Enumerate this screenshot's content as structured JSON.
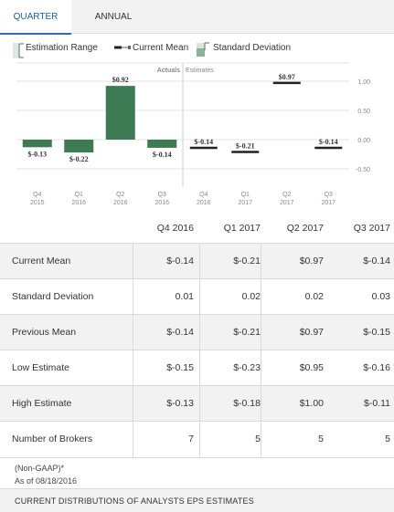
{
  "tabs": [
    {
      "label": "QUARTER",
      "active": true
    },
    {
      "label": "ANNUAL",
      "active": false
    }
  ],
  "legend": {
    "estimation_range": "Estimation Range",
    "current_mean": "Current Mean",
    "standard_deviation": "Standard Deviation"
  },
  "chart_data": {
    "type": "bar",
    "section_labels": {
      "actuals": "Actuals",
      "estimates": "Estimates"
    },
    "y_ticks": [
      "1.00",
      "0.50",
      "0.00",
      "-0.50"
    ],
    "y_tick_values": [
      1.0,
      0.5,
      0.0,
      -0.5
    ],
    "ylim": [
      -0.55,
      1.1
    ],
    "categories": [
      {
        "q": "Q4",
        "y": "2015"
      },
      {
        "q": "Q1",
        "y": "2016"
      },
      {
        "q": "Q2",
        "y": "2016"
      },
      {
        "q": "Q3",
        "y": "2016"
      },
      {
        "q": "Q4",
        "y": "2016"
      },
      {
        "q": "Q1",
        "y": "2017"
      },
      {
        "q": "Q2",
        "y": "2017"
      },
      {
        "q": "Q3",
        "y": "2017"
      }
    ],
    "actuals": [
      {
        "value": -0.13,
        "label": "$-0.13"
      },
      {
        "value": -0.22,
        "label": "$-0.22"
      },
      {
        "value": 0.92,
        "label": "$0.92"
      },
      {
        "value": -0.14,
        "label": "$-0.14"
      }
    ],
    "estimates": [
      {
        "value": -0.14,
        "label": "$-0.14"
      },
      {
        "value": -0.21,
        "label": "$-0.21"
      },
      {
        "value": 0.97,
        "label": "$0.97"
      },
      {
        "value": -0.14,
        "label": "$-0.14"
      }
    ],
    "colors": {
      "actual_bar": "#3e7b54",
      "estimate_line": "#222222",
      "grid": "#e3e3e3",
      "divider": "#cfcfcf"
    }
  },
  "table": {
    "columns": [
      "Q4 2016",
      "Q1 2017",
      "Q2 2017",
      "Q3 2017"
    ],
    "rows": [
      {
        "label": "Current Mean",
        "values": [
          "$-0.14",
          "$-0.21",
          "$0.97",
          "$-0.14"
        ]
      },
      {
        "label": "Standard Deviation",
        "values": [
          "0.01",
          "0.02",
          "0.02",
          "0.03"
        ]
      },
      {
        "label": "Previous Mean",
        "values": [
          "$-0.14",
          "$-0.21",
          "$0.97",
          "$-0.15"
        ]
      },
      {
        "label": "Low Estimate",
        "values": [
          "$-0.15",
          "$-0.23",
          "$0.95",
          "$-0.16"
        ]
      },
      {
        "label": "High Estimate",
        "values": [
          "$-0.13",
          "$-0.18",
          "$1.00",
          "$-0.11"
        ]
      },
      {
        "label": "Number of Brokers",
        "values": [
          "7",
          "5",
          "5",
          "5"
        ]
      }
    ]
  },
  "footnote": {
    "line1": "(Non-GAAP)*",
    "line2": "As of 08/18/2016"
  },
  "bottom_section": {
    "label": "CURRENT DISTRIBUTIONS OF ANALYSTS EPS ESTIMATES"
  }
}
